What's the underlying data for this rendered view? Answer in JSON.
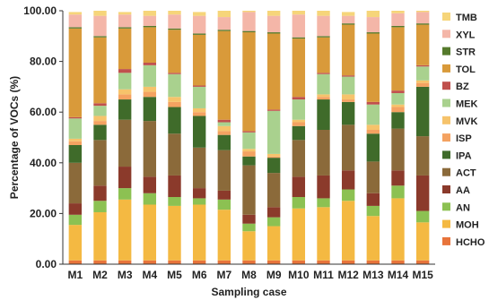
{
  "chart_data": {
    "type": "bar",
    "stacked": true,
    "xlabel": "Sampling case",
    "ylabel": "Percentage of VOCs (%)",
    "ylim": [
      0,
      100
    ],
    "yticks": [
      "0.00",
      "20.00",
      "40.00",
      "60.00",
      "80.00",
      "100.00"
    ],
    "grid": false,
    "legend_position": "right",
    "categories": [
      "M1",
      "M2",
      "M3",
      "M4",
      "M5",
      "M6",
      "M7",
      "M8",
      "M9",
      "M10",
      "M11",
      "M12",
      "M13",
      "M14",
      "M15"
    ],
    "series": [
      {
        "name": "HCHO",
        "color": "#e8743b",
        "values": [
          1.5,
          1.5,
          1.5,
          1.5,
          1.5,
          1.5,
          1.5,
          1.5,
          1.5,
          1.5,
          1.5,
          1.5,
          1.5,
          1.5,
          1.5
        ]
      },
      {
        "name": "MOH",
        "color": "#f4b942",
        "values": [
          14,
          19,
          24,
          22,
          21.5,
          22,
          20,
          11.5,
          13.5,
          20.5,
          21,
          23.5,
          17.5,
          24.5,
          15
        ]
      },
      {
        "name": "AN",
        "color": "#8cc152",
        "values": [
          4,
          4.5,
          4.5,
          4.5,
          3.5,
          2.5,
          4,
          3,
          3.5,
          4.5,
          3.5,
          4.5,
          4,
          5,
          4.5
        ]
      },
      {
        "name": "AA",
        "color": "#8b3a2b",
        "values": [
          4.5,
          6,
          8.5,
          6.5,
          8.5,
          4,
          3.5,
          3.5,
          4,
          8,
          9,
          7.5,
          5,
          6,
          14
        ]
      },
      {
        "name": "ACT",
        "color": "#8b6a3a",
        "values": [
          16,
          18,
          18.5,
          22,
          16.5,
          16,
          16,
          19.5,
          13.5,
          14.5,
          18,
          18,
          12.5,
          16.5,
          15.5
        ]
      },
      {
        "name": "IPA",
        "color": "#3f6b2a",
        "values": [
          7,
          6,
          8,
          9.5,
          10.5,
          12.5,
          6,
          3.5,
          6,
          5.5,
          12,
          9,
          11,
          6.5,
          19.5
        ]
      },
      {
        "name": "ISP",
        "color": "#f4a261",
        "values": [
          1.5,
          1.5,
          2,
          2,
          2,
          1.5,
          1.5,
          2,
          0.5,
          1.5,
          1,
          1,
          1.5,
          2,
          1.5
        ]
      },
      {
        "name": "MVK",
        "color": "#f6c36b",
        "values": [
          1,
          2,
          2,
          2,
          2,
          1.5,
          2,
          1,
          1,
          1,
          1,
          2,
          2,
          1,
          1
        ]
      },
      {
        "name": "MEK",
        "color": "#a9d18e",
        "values": [
          8,
          4,
          6.5,
          8.5,
          9,
          8.5,
          1.5,
          6.5,
          17,
          8,
          8,
          7,
          8,
          4.5,
          5.5
        ]
      },
      {
        "name": "BZ",
        "color": "#c0504d",
        "values": [
          0.5,
          1,
          1.5,
          1,
          0.5,
          0.5,
          1,
          0.5,
          0.5,
          1,
          0.5,
          0.5,
          1,
          1,
          0.5
        ]
      },
      {
        "name": "TOL",
        "color": "#d99a3a",
        "values": [
          35,
          26,
          16,
          14,
          17,
          20,
          35,
          39,
          30,
          23,
          14,
          20,
          27,
          25,
          16
        ]
      },
      {
        "name": "STR",
        "color": "#557a2c",
        "values": [
          0.5,
          0.5,
          0.5,
          0.5,
          0.5,
          0.5,
          0.5,
          0.5,
          0.5,
          0.5,
          0.5,
          0.5,
          0.5,
          0.5,
          0.5
        ]
      },
      {
        "name": "XYL",
        "color": "#f4b6a8",
        "values": [
          5,
          8,
          5,
          4,
          5.5,
          7,
          5,
          7.5,
          6.5,
          9,
          8,
          3,
          6,
          5,
          4.5
        ]
      },
      {
        "name": "TMB",
        "color": "#f6d57a",
        "values": [
          1,
          2,
          1,
          2,
          1.5,
          1.5,
          2.5,
          2.5,
          2,
          2.5,
          2,
          1.5,
          2.5,
          1,
          1
        ]
      }
    ]
  }
}
